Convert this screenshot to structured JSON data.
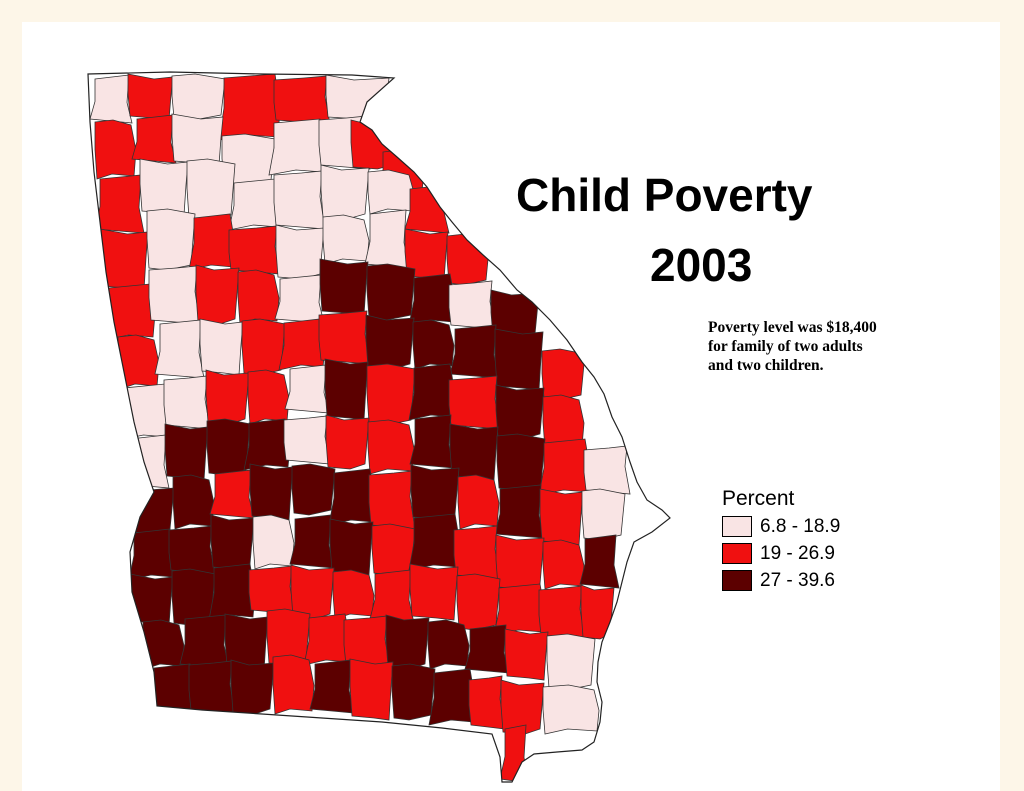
{
  "title": {
    "line1": "Child Poverty",
    "line2": "2003"
  },
  "note": {
    "line1": "Poverty level was $18,400",
    "line2": "for family of two adults",
    "line3": "and two children."
  },
  "legend": {
    "title": "Percent",
    "classes": [
      {
        "label": "6.8 - 18.9",
        "color": "#f9e4e4"
      },
      {
        "label": "19 - 26.9",
        "color": "#f01010"
      },
      {
        "label": "27 - 39.6",
        "color": "#5c0000"
      }
    ]
  },
  "colors": {
    "page_background": "#fdf6e8",
    "canvas_background": "#ffffff",
    "county_border": "#333333",
    "low": "#f9e4e4",
    "mid": "#f01010",
    "high": "#5c0000"
  }
}
